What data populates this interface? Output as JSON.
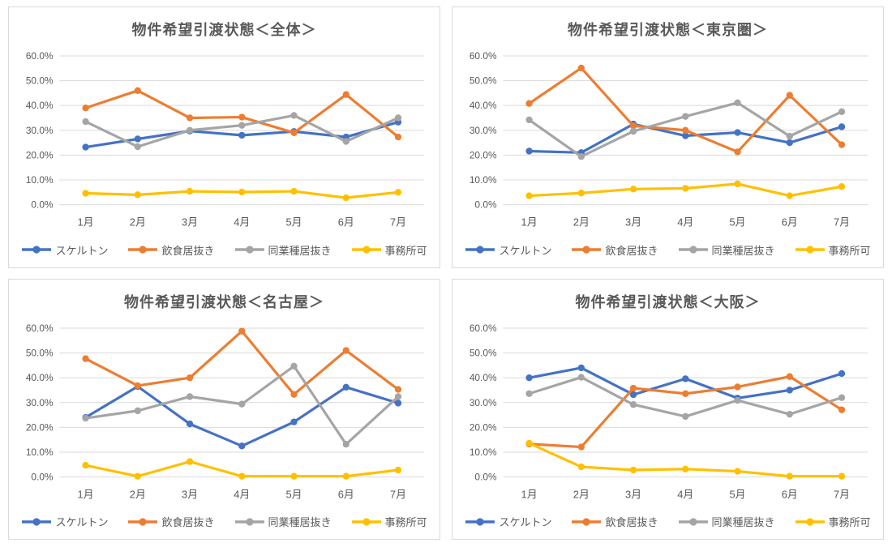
{
  "page": {
    "background": "#FFFFFF"
  },
  "styles": {
    "title_color": "#595959",
    "axis_label_color": "#595959",
    "gridline_color": "#D9D9D9",
    "panel_border_color": "#D9D9D9",
    "series_colors": {
      "skeleton": "#4472C4",
      "restaurant_inuki": "#ED7D31",
      "same_industry_inuki": "#A5A5A5",
      "office_ok": "#FFC000"
    }
  },
  "chart_data": [
    {
      "type": "line",
      "title": "物件希望引渡状態＜全体＞",
      "categories": [
        "1月",
        "2月",
        "3月",
        "4月",
        "5月",
        "6月",
        "7月"
      ],
      "y_ticks": [
        "0.0%",
        "10.0%",
        "20.0%",
        "30.0%",
        "40.0%",
        "50.0%",
        "60.0%"
      ],
      "ylim": [
        0,
        60
      ],
      "grid": true,
      "legend_position": "bottom",
      "series": [
        {
          "name": "スケルトン",
          "key": "skeleton",
          "color": "#4472C4",
          "values": [
            23.2,
            26.5,
            29.7,
            28.0,
            29.5,
            27.3,
            33.3
          ]
        },
        {
          "name": "飲食居抜き",
          "key": "restaurant-inuki",
          "color": "#ED7D31",
          "values": [
            39.0,
            46.0,
            35.0,
            35.3,
            29.0,
            44.4,
            27.3
          ]
        },
        {
          "name": "同業種居抜き",
          "key": "same-industry-inuki",
          "color": "#A5A5A5",
          "values": [
            33.5,
            23.4,
            30.0,
            32.0,
            36.0,
            25.5,
            35.0
          ]
        },
        {
          "name": "事務所可",
          "key": "office-ok",
          "color": "#FFC000",
          "values": [
            4.6,
            4.0,
            5.4,
            5.1,
            5.4,
            2.8,
            5.0
          ]
        }
      ]
    },
    {
      "type": "line",
      "title": "物件希望引渡状態＜東京圏＞",
      "categories": [
        "1月",
        "2月",
        "3月",
        "4月",
        "5月",
        "6月",
        "7月"
      ],
      "y_ticks": [
        "0.0%",
        "10.0%",
        "20.0%",
        "30.0%",
        "40.0%",
        "50.0%",
        "60.0%"
      ],
      "ylim": [
        0,
        60
      ],
      "grid": true,
      "legend_position": "bottom",
      "series": [
        {
          "name": "スケルトン",
          "key": "skeleton",
          "color": "#4472C4",
          "values": [
            21.6,
            21.0,
            32.5,
            27.8,
            29.1,
            25.0,
            31.4
          ]
        },
        {
          "name": "飲食居抜き",
          "key": "restaurant-inuki",
          "color": "#ED7D31",
          "values": [
            40.8,
            55.1,
            31.8,
            30.0,
            21.3,
            44.1,
            24.2
          ]
        },
        {
          "name": "同業種居抜き",
          "key": "same-industry-inuki",
          "color": "#A5A5A5",
          "values": [
            34.2,
            19.4,
            29.6,
            35.6,
            41.1,
            27.6,
            37.5
          ]
        },
        {
          "name": "事務所可",
          "key": "office-ok",
          "color": "#FFC000",
          "values": [
            3.6,
            4.7,
            6.3,
            6.6,
            8.4,
            3.6,
            7.3
          ]
        }
      ]
    },
    {
      "type": "line",
      "title": "物件希望引渡状態＜名古屋＞",
      "categories": [
        "1月",
        "2月",
        "3月",
        "4月",
        "5月",
        "6月",
        "7月"
      ],
      "y_ticks": [
        "0.0%",
        "10.0%",
        "20.0%",
        "30.0%",
        "40.0%",
        "50.0%",
        "60.0%"
      ],
      "ylim": [
        0,
        60
      ],
      "grid": true,
      "legend_position": "bottom",
      "series": [
        {
          "name": "スケルトン",
          "key": "skeleton",
          "color": "#4472C4",
          "values": [
            24.0,
            36.5,
            21.4,
            12.5,
            22.2,
            36.2,
            29.8
          ]
        },
        {
          "name": "飲食居抜き",
          "key": "restaurant-inuki",
          "color": "#ED7D31",
          "values": [
            47.7,
            36.8,
            40.0,
            58.8,
            33.3,
            51.0,
            35.3
          ]
        },
        {
          "name": "同業種居抜き",
          "key": "same-industry-inuki",
          "color": "#A5A5A5",
          "values": [
            23.7,
            26.7,
            32.4,
            29.4,
            44.7,
            13.2,
            32.4
          ]
        },
        {
          "name": "事務所可",
          "key": "office-ok",
          "color": "#FFC000",
          "values": [
            4.7,
            0.3,
            6.2,
            0.3,
            0.3,
            0.3,
            2.8
          ]
        }
      ]
    },
    {
      "type": "line",
      "title": "物件希望引渡状態＜大阪＞",
      "categories": [
        "1月",
        "2月",
        "3月",
        "4月",
        "5月",
        "6月",
        "7月"
      ],
      "y_ticks": [
        "0.0%",
        "10.0%",
        "20.0%",
        "30.0%",
        "40.0%",
        "50.0%",
        "60.0%"
      ],
      "ylim": [
        0,
        60
      ],
      "grid": true,
      "legend_position": "bottom",
      "series": [
        {
          "name": "スケルトン",
          "key": "skeleton",
          "color": "#4472C4",
          "values": [
            40.0,
            44.0,
            33.2,
            39.6,
            31.8,
            35.0,
            41.7
          ]
        },
        {
          "name": "飲食居抜き",
          "key": "restaurant-inuki",
          "color": "#ED7D31",
          "values": [
            13.3,
            12.1,
            35.8,
            33.6,
            36.3,
            40.5,
            27.1
          ]
        },
        {
          "name": "同業種居抜き",
          "key": "same-industry-inuki",
          "color": "#A5A5A5",
          "values": [
            33.6,
            40.2,
            29.2,
            24.4,
            30.9,
            25.3,
            32.0
          ]
        },
        {
          "name": "事務所可",
          "key": "office-ok",
          "color": "#FFC000",
          "values": [
            13.6,
            4.1,
            2.8,
            3.2,
            2.3,
            0.3,
            0.3
          ]
        }
      ]
    }
  ]
}
